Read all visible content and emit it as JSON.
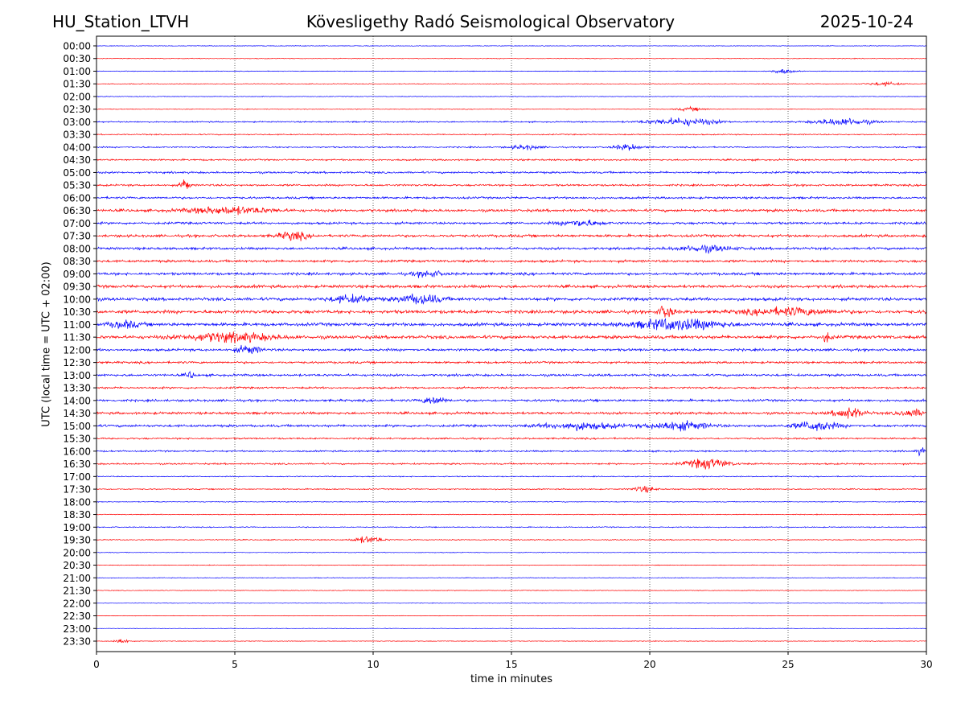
{
  "header": {
    "station": "HU_Station_LTVH",
    "title": "Kövesligethy Radó Seismological Observatory",
    "date": "2025-10-24"
  },
  "chart_data": {
    "type": "line",
    "title": "Kövesligethy Radó Seismological Observatory",
    "xlabel": "time in minutes",
    "ylabel": "UTC (local time = UTC + 02:00)",
    "xlim": [
      0,
      30
    ],
    "xticks": [
      0,
      5,
      10,
      15,
      20,
      25,
      30
    ],
    "grid": "vertical dotted at 5-minute intervals",
    "colors": [
      "#0000ff",
      "#ff0000"
    ],
    "rows": [
      "00:00",
      "00:30",
      "01:00",
      "01:30",
      "02:00",
      "02:30",
      "03:00",
      "03:30",
      "04:00",
      "04:30",
      "05:00",
      "05:30",
      "06:00",
      "06:30",
      "07:00",
      "07:30",
      "08:00",
      "08:30",
      "09:00",
      "09:30",
      "10:00",
      "10:30",
      "11:00",
      "11:30",
      "12:00",
      "12:30",
      "13:00",
      "13:30",
      "14:00",
      "14:30",
      "15:00",
      "15:30",
      "16:00",
      "16:30",
      "17:00",
      "17:30",
      "18:00",
      "18:30",
      "19:00",
      "19:30",
      "20:00",
      "20:30",
      "21:00",
      "21:30",
      "22:00",
      "22:30",
      "23:00",
      "23:30"
    ],
    "noise_level": [
      0.4,
      0.4,
      0.4,
      0.4,
      0.4,
      0.4,
      0.8,
      0.7,
      0.8,
      1.0,
      1.2,
      1.2,
      1.3,
      1.6,
      1.4,
      1.6,
      1.5,
      1.5,
      1.6,
      1.8,
      1.9,
      2.0,
      2.0,
      2.0,
      1.5,
      1.3,
      1.4,
      1.2,
      1.4,
      1.5,
      1.5,
      1.0,
      1.0,
      1.0,
      0.6,
      0.7,
      0.5,
      0.5,
      0.6,
      0.6,
      0.4,
      0.4,
      0.4,
      0.4,
      0.3,
      0.3,
      0.3,
      0.4
    ],
    "events": [
      {
        "row": "01:00",
        "minute": 24.8,
        "amplitude": 2,
        "duration": 0.8
      },
      {
        "row": "01:30",
        "minute": 28.5,
        "amplitude": 1.5,
        "duration": 1.2
      },
      {
        "row": "02:30",
        "minute": 21.5,
        "amplitude": 1.5,
        "duration": 1
      },
      {
        "row": "03:00",
        "minute": 21.2,
        "amplitude": 3,
        "duration": 2.5
      },
      {
        "row": "03:00",
        "minute": 27,
        "amplitude": 3,
        "duration": 2
      },
      {
        "row": "04:00",
        "minute": 15.5,
        "amplitude": 2,
        "duration": 1
      },
      {
        "row": "04:00",
        "minute": 19.2,
        "amplitude": 2.5,
        "duration": 1
      },
      {
        "row": "05:30",
        "minute": 3.2,
        "amplitude": 6,
        "duration": 0.3
      },
      {
        "row": "06:30",
        "minute": 4.8,
        "amplitude": 3,
        "duration": 3
      },
      {
        "row": "07:00",
        "minute": 17.5,
        "amplitude": 2.5,
        "duration": 1.5
      },
      {
        "row": "07:30",
        "minute": 7.1,
        "amplitude": 3.5,
        "duration": 1
      },
      {
        "row": "08:00",
        "minute": 22,
        "amplitude": 2.5,
        "duration": 2
      },
      {
        "row": "09:00",
        "minute": 12,
        "amplitude": 2.5,
        "duration": 1
      },
      {
        "row": "10:00",
        "minute": 11.7,
        "amplitude": 4,
        "duration": 1.5
      },
      {
        "row": "10:00",
        "minute": 9.2,
        "amplitude": 3,
        "duration": 1.5
      },
      {
        "row": "10:30",
        "minute": 20.6,
        "amplitude": 6,
        "duration": 0.5
      },
      {
        "row": "10:30",
        "minute": 25,
        "amplitude": 3,
        "duration": 3
      },
      {
        "row": "11:00",
        "minute": 21,
        "amplitude": 5,
        "duration": 3
      },
      {
        "row": "11:00",
        "minute": 1,
        "amplitude": 3,
        "duration": 1
      },
      {
        "row": "11:30",
        "minute": 4.8,
        "amplitude": 4,
        "duration": 3
      },
      {
        "row": "11:30",
        "minute": 26.4,
        "amplitude": 4,
        "duration": 0.3
      },
      {
        "row": "12:00",
        "minute": 5.5,
        "amplitude": 3.5,
        "duration": 0.8
      },
      {
        "row": "13:00",
        "minute": 3.4,
        "amplitude": 3,
        "duration": 0.3
      },
      {
        "row": "14:00",
        "minute": 12.2,
        "amplitude": 3.5,
        "duration": 0.8
      },
      {
        "row": "14:30",
        "minute": 27.2,
        "amplitude": 5,
        "duration": 1
      },
      {
        "row": "14:30",
        "minute": 29.5,
        "amplitude": 3,
        "duration": 1
      },
      {
        "row": "15:00",
        "minute": 17.5,
        "amplitude": 3,
        "duration": 2.5
      },
      {
        "row": "15:00",
        "minute": 21,
        "amplitude": 4,
        "duration": 2
      },
      {
        "row": "15:00",
        "minute": 26,
        "amplitude": 4,
        "duration": 1.5
      },
      {
        "row": "16:00",
        "minute": 29.8,
        "amplitude": 3,
        "duration": 0.3
      },
      {
        "row": "16:30",
        "minute": 22.1,
        "amplitude": 4.5,
        "duration": 1.5
      },
      {
        "row": "17:30",
        "minute": 19.8,
        "amplitude": 2.5,
        "duration": 0.8
      },
      {
        "row": "19:30",
        "minute": 9.8,
        "amplitude": 3,
        "duration": 1
      },
      {
        "row": "23:30",
        "minute": 0.9,
        "amplitude": 2.5,
        "duration": 0.5
      }
    ]
  }
}
